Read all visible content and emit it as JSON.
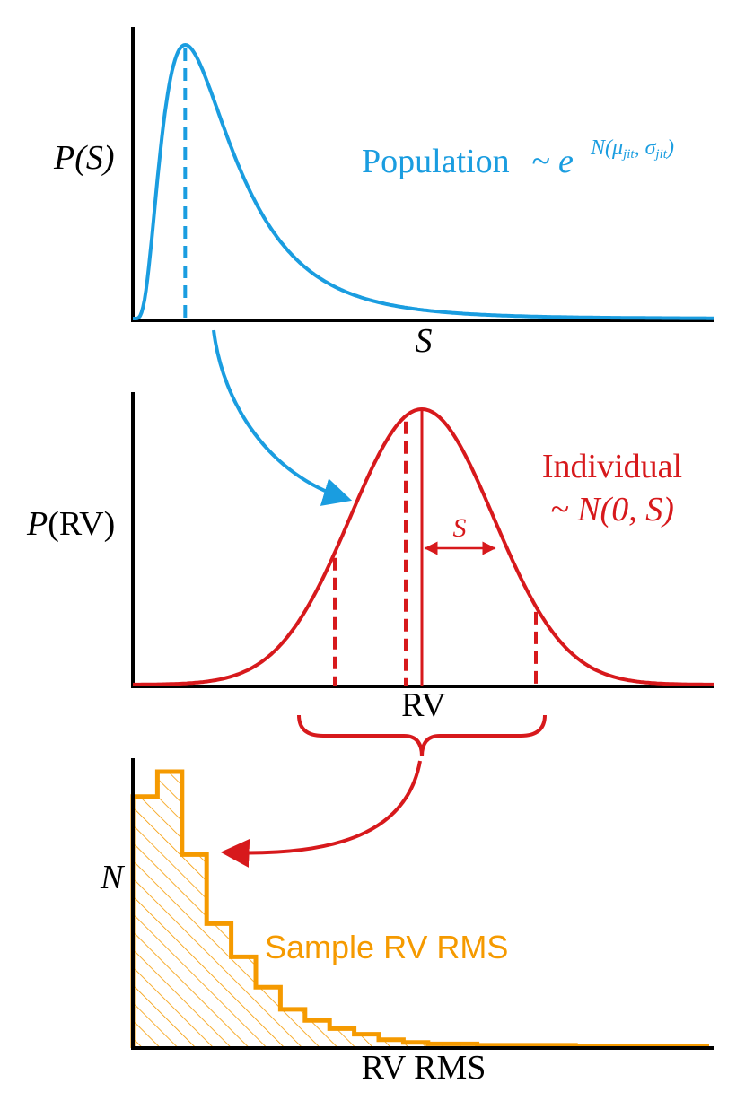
{
  "colors": {
    "population": "#1a9de0",
    "individual": "#d7191c",
    "sample": "#f59a00",
    "axis": "#000000"
  },
  "panel_top": {
    "ylabel": "P(S)",
    "xlabel": "S",
    "annotation_text": "Population",
    "annotation_formula": "~ e^N(μjit, σjit)",
    "annotation_prefix": "~ e",
    "annotation_exp_N": "N",
    "annotation_exp_open": "(μ",
    "annotation_exp_mu_sub": "jit",
    "annotation_exp_mid": ", σ",
    "annotation_exp_sigma_sub": "jit",
    "annotation_exp_close": ")"
  },
  "panel_middle": {
    "ylabel": "P(RV)",
    "xlabel": "RV",
    "annotation_text": "Individual",
    "annotation_formula": "~ N(0, S)",
    "width_label": "S"
  },
  "panel_bottom": {
    "ylabel": "N",
    "xlabel": "RV RMS",
    "annotation_text": "Sample RV RMS"
  },
  "chart_data": [
    {
      "type": "line",
      "description_of_curve": "log-normal shaped density",
      "ylabel": "P(S)",
      "xlabel": "S",
      "series": [
        {
          "name": "Population",
          "shape": "lognormal"
        }
      ]
    },
    {
      "type": "line",
      "ylabel": "P(RV)",
      "xlabel": "RV",
      "series": [
        {
          "name": "Individual",
          "shape": "gaussian",
          "mean": 0
        }
      ]
    },
    {
      "type": "bar",
      "ylabel": "N",
      "xlabel": "RV RMS",
      "series": [
        {
          "name": "Sample RV RMS",
          "values": [
            0.91,
            1.0,
            0.7,
            0.45,
            0.33,
            0.22,
            0.14,
            0.1,
            0.07,
            0.05,
            0.03,
            0.02,
            0.015,
            0.015,
            0.01,
            0.01,
            0.01,
            0.01,
            0.005,
            0.005,
            0.005,
            0.005
          ]
        }
      ]
    }
  ]
}
